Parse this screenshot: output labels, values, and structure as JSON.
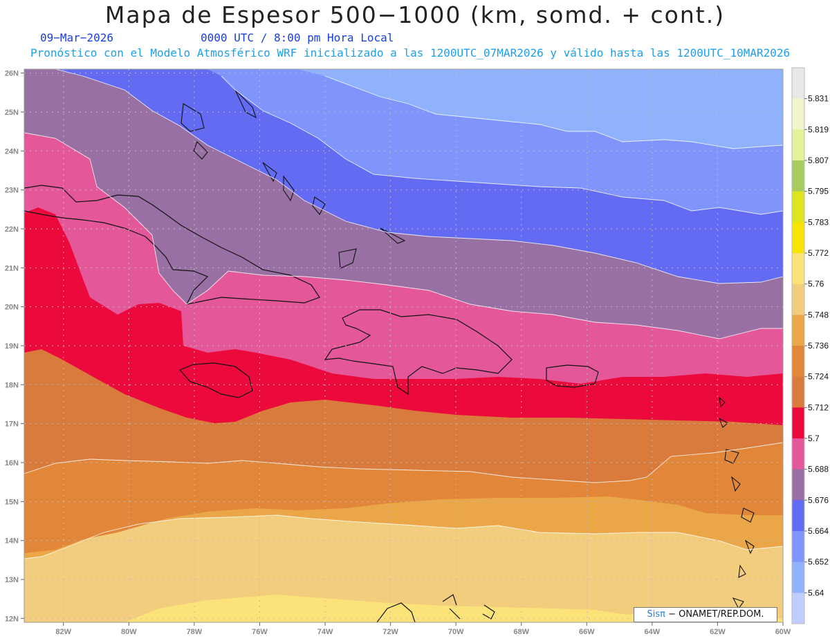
{
  "header": {
    "title": "Mapa de Espesor 500−1000 (km, somd. + cont.)",
    "date": "09−Mar−2026",
    "time": "0000 UTC / 8:00 pm Hora Local",
    "description": "Pronóstico con el Modelo Atmosférico WRF inicializado a las 1200UTC_07MAR2026 y válido hasta las  1200UTC_10MAR2026"
  },
  "credit": {
    "brand": "Sisπ",
    "org": " − ONAMET/REP.DOM."
  },
  "map": {
    "lon_ticks": [
      "82W",
      "80W",
      "78W",
      "76W",
      "74W",
      "72W",
      "70W",
      "68W",
      "66W",
      "64W",
      "62W",
      "60W"
    ],
    "lat_ticks": [
      "26N",
      "25N",
      "24N",
      "23N",
      "22N",
      "21N",
      "20N",
      "19N",
      "18N",
      "17N",
      "16N",
      "15N",
      "14N",
      "13N",
      "12N"
    ],
    "lon_range": [
      -83.2,
      -60
    ],
    "lat_range": [
      11.9,
      26.1
    ]
  },
  "legend": {
    "labels": [
      "5.831",
      "5.819",
      "5.807",
      "5.795",
      "5.783",
      "5.772",
      "5.76",
      "5.748",
      "5.736",
      "5.724",
      "5.712",
      "5.7",
      "5.688",
      "5.676",
      "5.664",
      "5.652",
      "5.64"
    ],
    "colors": [
      "#e8e8e8",
      "#f2f5cc",
      "#e3f29a",
      "#a8cc60",
      "#dde51c",
      "#f7e402",
      "#fbe37a",
      "#f3cd7e",
      "#eba648",
      "#e2873a",
      "#d97b3c",
      "#ec0a3d",
      "#e4589a",
      "#9970a3",
      "#626bf2",
      "#7f95fb",
      "#90b2fd",
      "#c0cdff"
    ]
  },
  "chart_data": {
    "type": "contour-map",
    "variable": "Espesor 500−1000",
    "units": "km",
    "levels": [
      5.64,
      5.652,
      5.664,
      5.676,
      5.688,
      5.7,
      5.712,
      5.724,
      5.736,
      5.748,
      5.76,
      5.772
    ]
  }
}
